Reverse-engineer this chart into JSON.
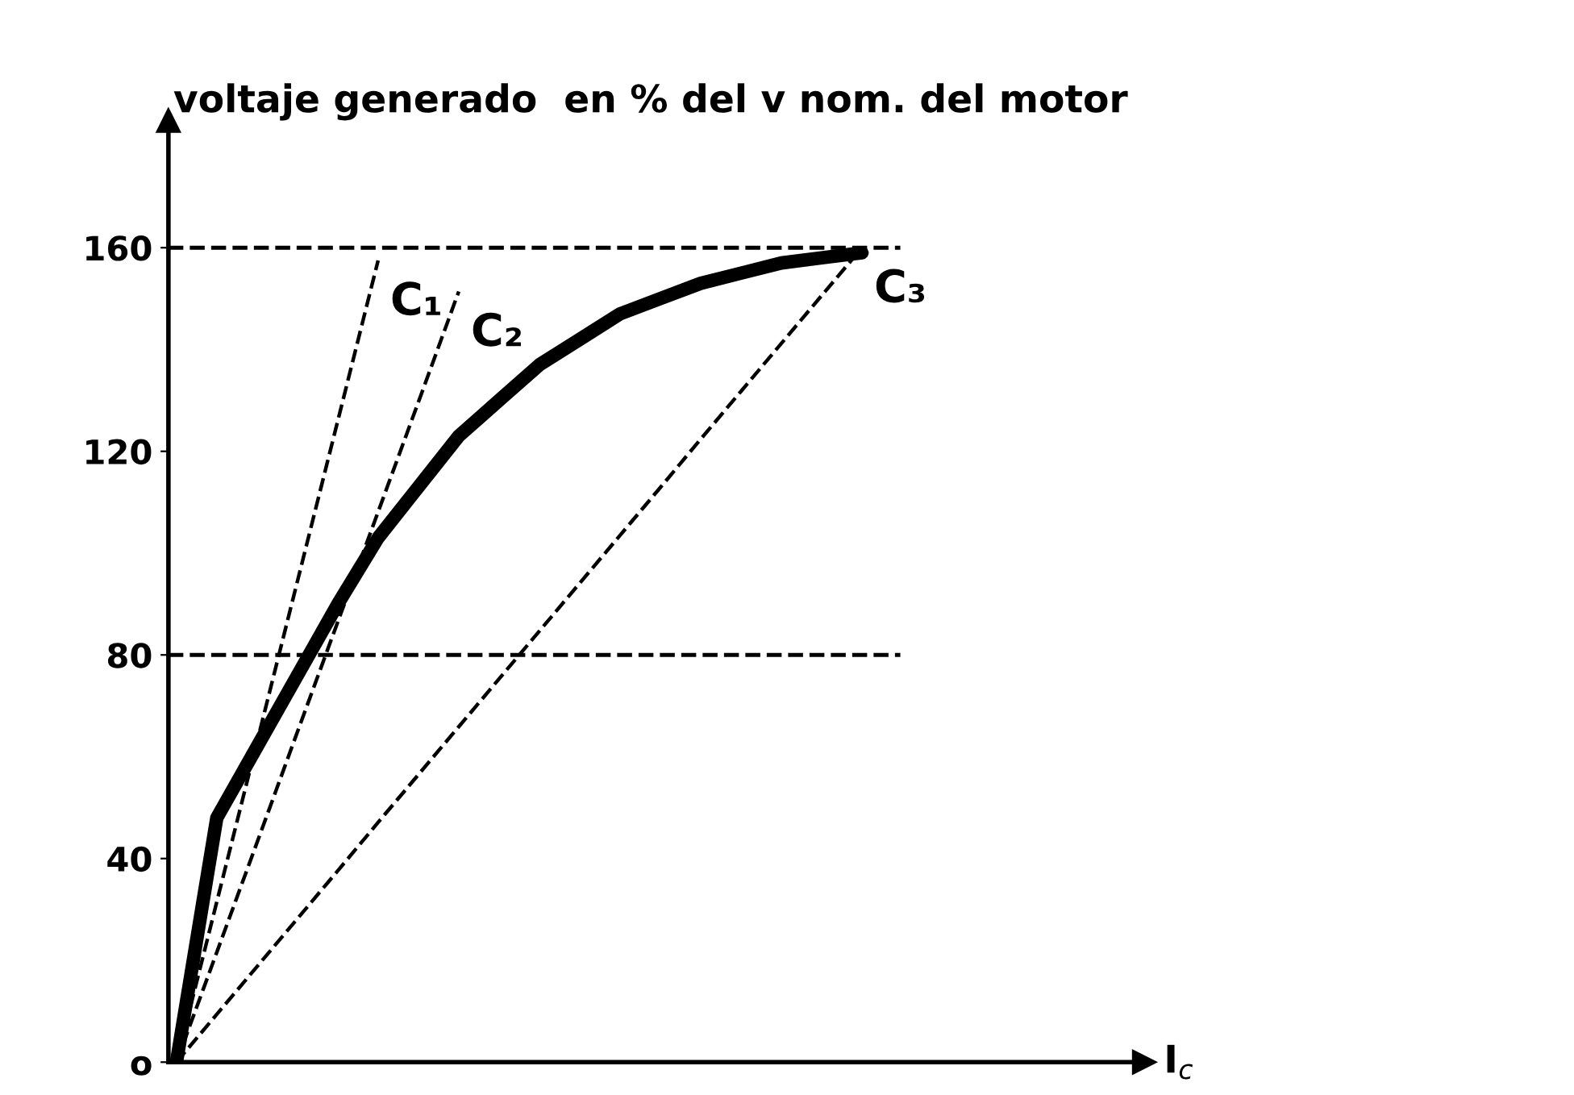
{
  "chart_data": {
    "type": "line",
    "ylabel": "voltaje generado  en % del v nom. del motor",
    "xlabel": "I$_{c}$",
    "categories": [
      null,
      null,
      null,
      null,
      null,
      null,
      null,
      null,
      null,
      null,
      null,
      null,
      null,
      null,
      null,
      null,
      null,
      null,
      null,
      null,
      null,
      null,
      null,
      null,
      null
    ],
    "ylim": [
      0,
      185
    ],
    "yticks": [
      {
        "value": 0,
        "label": "o"
      },
      40,
      80,
      120,
      160
    ],
    "tick_labels": "y",
    "grid": false,
    "legend": false,
    "marker": "none",
    "series": [
      {
        "color": "#000000",
        "line_style": "solid",
        "values": [
          0,
          48,
          62,
          76,
          90,
          103,
          113,
          123,
          130,
          137,
          142,
          147,
          150,
          153,
          155,
          157,
          158,
          159,
          null,
          null,
          null,
          null,
          null,
          null,
          null
        ]
      },
      {
        "name": "C₁",
        "color": "#000000",
        "line_style": "dashed",
        "values": [
          0,
          31.5,
          63,
          94.5,
          126,
          157.5,
          null,
          null,
          null,
          null,
          null,
          null,
          null,
          null,
          null,
          null,
          null,
          null,
          null,
          null,
          null,
          null,
          null,
          null,
          null
        ]
      },
      {
        "name": "C₂",
        "color": "#000000",
        "line_style": "dashed",
        "values": [
          0,
          21.6,
          43.2,
          64.9,
          86.5,
          108.1,
          129.7,
          151.4,
          null,
          null,
          null,
          null,
          null,
          null,
          null,
          null,
          null,
          null,
          null,
          null,
          null,
          null,
          null,
          null,
          null
        ]
      },
      {
        "name": "C₃",
        "color": "#000000",
        "line_style": "dashed",
        "values": [
          0,
          9.4,
          18.8,
          28.2,
          37.6,
          47.1,
          56.5,
          65.9,
          75.3,
          84.7,
          94.1,
          103.5,
          112.9,
          122.4,
          131.8,
          141.2,
          150.6,
          160,
          null,
          null,
          null,
          null,
          null,
          null,
          null
        ]
      }
    ],
    "ref_lines": [
      {
        "axis": "y",
        "value": 80,
        "line_style": "dashed",
        "color": "#000000"
      },
      {
        "axis": "y",
        "value": 160,
        "line_style": "dashed",
        "color": "#000000"
      }
    ]
  }
}
